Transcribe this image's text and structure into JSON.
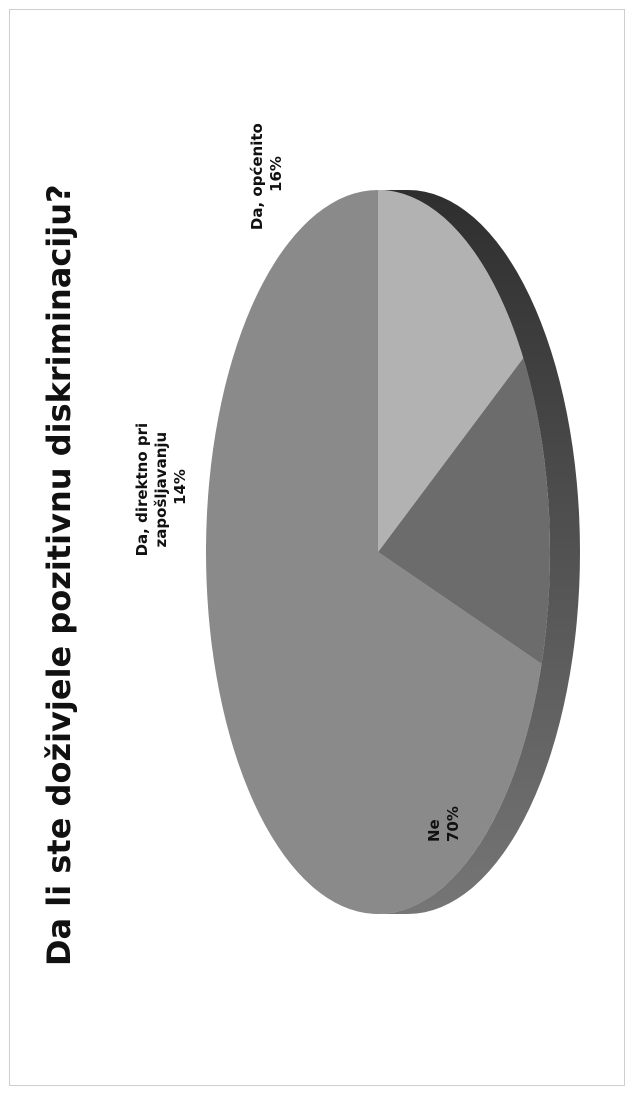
{
  "chart_data": {
    "type": "pie",
    "title": "Da li ste doživjele pozitivnu diskriminaciju?",
    "legend": "none",
    "slices": [
      {
        "label_lines": [
          "Ne"
        ],
        "value": 70,
        "value_label": "70%",
        "color": "#8a8a8a"
      },
      {
        "label_lines": [
          "Da, direktno pri",
          "zapošljavanju"
        ],
        "value": 14,
        "value_label": "14%",
        "color": "#6c6c6c"
      },
      {
        "label_lines": [
          "Da, općenito"
        ],
        "value": 16,
        "value_label": "16%",
        "color": "#b2b2b2"
      }
    ],
    "side_color_dark": "#2e2e2e",
    "side_color_light": "#767676"
  }
}
